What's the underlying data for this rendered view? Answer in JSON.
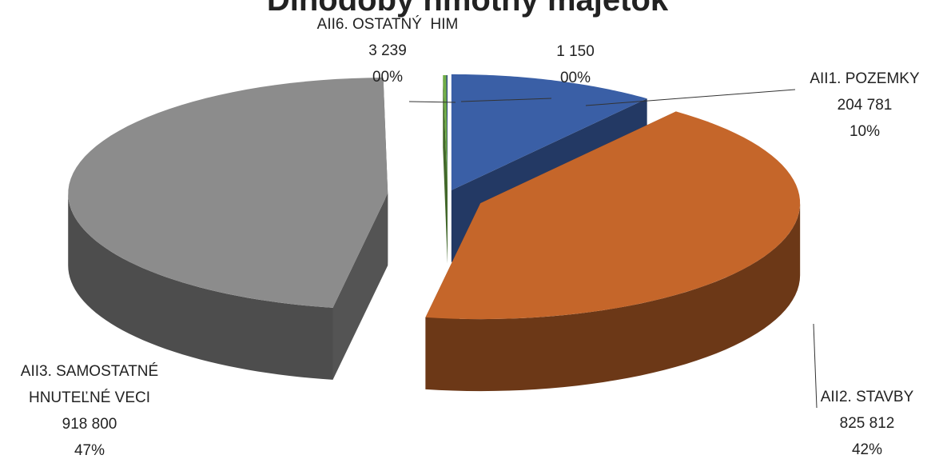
{
  "chart_data": {
    "type": "pie3d",
    "title": "Dlhodobý hmotný majetok",
    "categories": [
      "AII1. POZEMKY",
      "AII2. STAVBY",
      "AII3. SAMOSTATNÉ HNUTEĽNÉ VECI",
      "AII6. OSTATNÝ  HIM",
      null
    ],
    "values": [
      204781,
      825812,
      918800,
      3239,
      1150
    ],
    "value_labels": [
      "204 781",
      "825 812",
      "918 800",
      "3 239",
      "1 150"
    ],
    "percent_labels": [
      "10%",
      "42%",
      "47%",
      "00%",
      "00%"
    ],
    "colors": [
      "#3a5fa6",
      "#c5662a",
      "#8c8c8c",
      "#70ad47",
      "#264478"
    ]
  }
}
